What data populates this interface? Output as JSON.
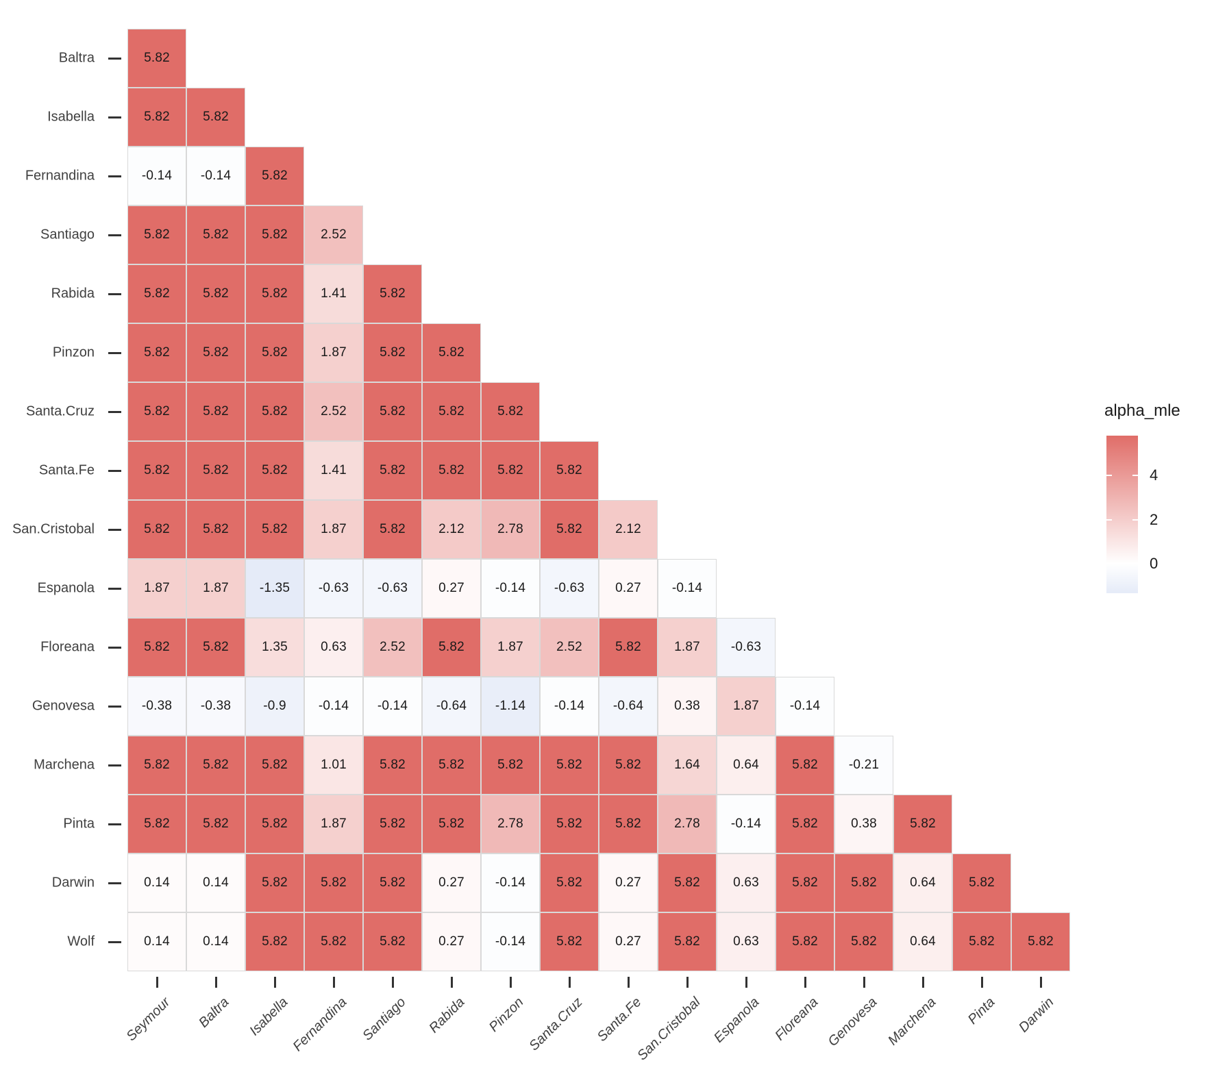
{
  "chart_data": {
    "type": "heatmap",
    "title": "",
    "legend_title": "alpha_mle",
    "layout": {
      "shape": "lower-triangular",
      "legend_position": "right",
      "x_tick_label_angle": 45,
      "x_tick_label_style": "italic",
      "cell_value_labels": true
    },
    "x_categories": [
      "Seymour",
      "Baltra",
      "Isabella",
      "Fernandina",
      "Santiago",
      "Rabida",
      "Pinzon",
      "Santa.Cruz",
      "Santa.Fe",
      "San.Cristobal",
      "Espanola",
      "Floreana",
      "Genovesa",
      "Marchena",
      "Pinta",
      "Darwin"
    ],
    "y_categories": [
      "Baltra",
      "Isabella",
      "Fernandina",
      "Santiago",
      "Rabida",
      "Pinzon",
      "Santa.Cruz",
      "Santa.Fe",
      "San.Cristobal",
      "Espanola",
      "Floreana",
      "Genovesa",
      "Marchena",
      "Pinta",
      "Darwin",
      "Wolf"
    ],
    "values": [
      [
        5.82
      ],
      [
        5.82,
        5.82
      ],
      [
        -0.14,
        -0.14,
        5.82
      ],
      [
        5.82,
        5.82,
        5.82,
        2.52
      ],
      [
        5.82,
        5.82,
        5.82,
        1.41,
        5.82
      ],
      [
        5.82,
        5.82,
        5.82,
        1.87,
        5.82,
        5.82
      ],
      [
        5.82,
        5.82,
        5.82,
        2.52,
        5.82,
        5.82,
        5.82
      ],
      [
        5.82,
        5.82,
        5.82,
        1.41,
        5.82,
        5.82,
        5.82,
        5.82
      ],
      [
        5.82,
        5.82,
        5.82,
        1.87,
        5.82,
        2.12,
        2.78,
        5.82,
        2.12
      ],
      [
        1.87,
        1.87,
        -1.35,
        -0.63,
        -0.63,
        0.27,
        -0.14,
        -0.63,
        0.27,
        -0.14
      ],
      [
        5.82,
        5.82,
        1.35,
        0.63,
        2.52,
        5.82,
        1.87,
        2.52,
        5.82,
        1.87,
        -0.63
      ],
      [
        -0.38,
        -0.38,
        -0.9,
        -0.14,
        -0.14,
        -0.64,
        -1.14,
        -0.14,
        -0.64,
        0.38,
        1.87,
        -0.14
      ],
      [
        5.82,
        5.82,
        5.82,
        1.01,
        5.82,
        5.82,
        5.82,
        5.82,
        5.82,
        1.64,
        0.64,
        5.82,
        -0.21
      ],
      [
        5.82,
        5.82,
        5.82,
        1.87,
        5.82,
        5.82,
        2.78,
        5.82,
        5.82,
        2.78,
        -0.14,
        5.82,
        0.38,
        5.82
      ],
      [
        0.14,
        0.14,
        5.82,
        5.82,
        5.82,
        0.27,
        -0.14,
        5.82,
        0.27,
        5.82,
        0.63,
        5.82,
        5.82,
        0.64,
        5.82
      ],
      [
        0.14,
        0.14,
        5.82,
        5.82,
        5.82,
        0.27,
        -0.14,
        5.82,
        0.27,
        5.82,
        0.63,
        5.82,
        5.82,
        0.64,
        5.82,
        5.82
      ]
    ],
    "color_scale": {
      "min": -1.35,
      "max": 5.82,
      "mid": 0,
      "min_color": "#E5EBF8",
      "mid_color": "#FFFFFF",
      "max_color": "#E06D68"
    },
    "legend_ticks": [
      4,
      2,
      0
    ]
  }
}
